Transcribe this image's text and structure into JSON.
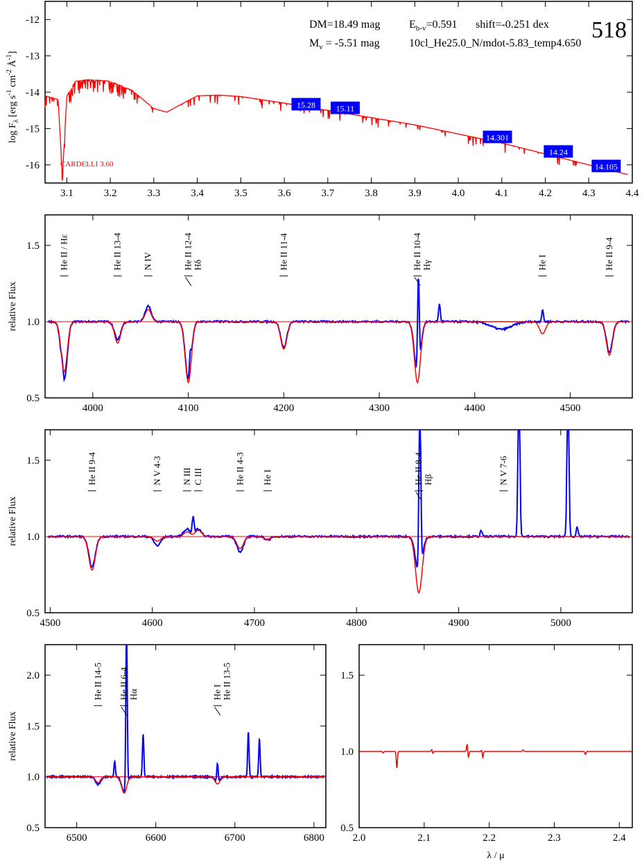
{
  "figure": {
    "object_id": "518",
    "dm": "DM=18.49 mag",
    "mv": "M",
    "mv_sub": "v",
    "mv_value": " =  -5.51 mag",
    "ebv_prefix": "E",
    "ebv_sub": "b-v",
    "ebv_value": "=0.591",
    "shift": "shift=-0.251 dex",
    "model": "10cl_He25.0_N/mdot-5.83_temp4.650",
    "reddening_law": "CARDELLI 3.60",
    "xlabel_bottom": "λ / μ"
  },
  "colors": {
    "observed": "#0000ff",
    "model": "#ff0000",
    "photometry_box": "#0000ff",
    "axis": "#000000"
  },
  "chart_data": [
    {
      "type": "line",
      "panel": "sed",
      "ylabel": "log F",
      "ylabel_sub": "λ",
      "ylabel_rest": " [erg s",
      "ylabel_units": [
        "-1",
        " cm",
        "-2",
        " Å",
        "-1",
        "]"
      ],
      "xlim": [
        3.05,
        4.4
      ],
      "ylim": [
        -16.5,
        -11.5
      ],
      "x_ticks": [
        3.1,
        3.2,
        3.3,
        3.4,
        3.5,
        3.6,
        3.7,
        3.8,
        3.9,
        4.0,
        4.1,
        4.2,
        4.3,
        4.4
      ],
      "y_ticks": [
        -16,
        -15,
        -14,
        -13,
        -12
      ],
      "model_sed": {
        "x": [
          3.05,
          3.08,
          3.09,
          3.1,
          3.12,
          3.15,
          3.2,
          3.25,
          3.3,
          3.33,
          3.36,
          3.4,
          3.45,
          3.5,
          3.6,
          3.7,
          3.8,
          3.9,
          4.0,
          4.1,
          4.2,
          4.3,
          4.4
        ],
        "y": [
          -14.1,
          -14.2,
          -16.3,
          -14.1,
          -13.7,
          -13.65,
          -13.7,
          -13.95,
          -14.45,
          -14.55,
          -14.35,
          -14.1,
          -14.08,
          -14.12,
          -14.3,
          -14.5,
          -14.7,
          -14.9,
          -15.15,
          -15.4,
          -15.7,
          -16.0,
          -16.3
        ]
      },
      "photometry": [
        {
          "x": 3.65,
          "y": -14.35,
          "label": "15.28"
        },
        {
          "x": 3.74,
          "y": -14.45,
          "label": "15.11"
        },
        {
          "x": 4.09,
          "y": -15.25,
          "label": "14.301"
        },
        {
          "x": 4.23,
          "y": -15.65,
          "label": "14.24"
        },
        {
          "x": 4.34,
          "y": -16.05,
          "label": "14.105"
        }
      ]
    },
    {
      "type": "line",
      "panel": "blue-1",
      "ylabel": "relative Flux",
      "xlim": [
        3950,
        4565
      ],
      "ylim": [
        0.5,
        1.7
      ],
      "x_ticks": [
        4000,
        4100,
        4200,
        4300,
        4400,
        4500
      ],
      "y_ticks": [
        0.5,
        1.0,
        1.5
      ],
      "y_tick_labels": [
        "0.5",
        "1.0",
        "1.5"
      ],
      "lines": [
        {
          "x": 3970,
          "label": "He II / Hε",
          "obs": -0.38,
          "mod": -0.33
        },
        {
          "x": 4026,
          "label": "He II 13-4",
          "obs": -0.12,
          "mod": -0.14
        },
        {
          "x": 4058,
          "label": "N IV",
          "obs": 0.1,
          "mod": 0.08
        },
        {
          "x": 4100,
          "label": "He II 12-4",
          "label2": "Hδ",
          "obs": -0.38,
          "mod": -0.4
        },
        {
          "x": 4200,
          "label": "He II 11-4",
          "obs": -0.17,
          "mod": -0.18
        },
        {
          "x": 4340,
          "label": "He II 10-4",
          "label2": "Hγ",
          "obs": -0.35,
          "mod": -0.4
        },
        {
          "x": 4471,
          "label": "He I",
          "obs": 0.0,
          "mod": -0.08
        },
        {
          "x": 4541,
          "label": "He II 9-4",
          "obs": -0.2,
          "mod": -0.22
        }
      ],
      "emission": [
        {
          "x": 4341,
          "h": 0.65
        },
        {
          "x": 4102,
          "h": 0.12
        },
        {
          "x": 4363,
          "h": 0.12
        },
        {
          "x": 4471,
          "h": 0.08
        },
        {
          "x": 3968,
          "h": 0.06
        }
      ],
      "broad": [
        {
          "x": 4428,
          "depth": -0.05,
          "width": 15
        }
      ]
    },
    {
      "type": "line",
      "panel": "blue-2",
      "ylabel": "relative Flux",
      "xlim": [
        4495,
        5070
      ],
      "ylim": [
        0.5,
        1.7
      ],
      "x_ticks": [
        4500,
        4600,
        4700,
        4800,
        4900,
        5000
      ],
      "y_ticks": [
        0.5,
        1.0,
        1.5
      ],
      "y_tick_labels": [
        "0.5",
        "1.0",
        "1.5"
      ],
      "lines": [
        {
          "x": 4541,
          "label": "He II 9-4",
          "obs": -0.2,
          "mod": -0.22
        },
        {
          "x": 4605,
          "label": "N V 4-3",
          "obs": -0.06,
          "mod": -0.03
        },
        {
          "x": 4634,
          "label": "N III",
          "obs": 0.05,
          "mod": 0.03
        },
        {
          "x": 4645,
          "label": "C III",
          "obs": 0.05,
          "mod": 0.04
        },
        {
          "x": 4686,
          "label": "He II 4-3",
          "obs": -0.1,
          "mod": -0.08
        },
        {
          "x": 4713,
          "label": "He I",
          "obs": -0.02,
          "mod": -0.02
        },
        {
          "x": 4861,
          "label": "He II 8-4",
          "label2": "Hβ",
          "obs": -0.25,
          "mod": -0.37
        },
        {
          "x": 4944,
          "label": "N V 7-6",
          "obs": 0.0,
          "mod": 0.0
        }
      ],
      "emission": [
        {
          "x": 4862,
          "h": 1.2
        },
        {
          "x": 4959,
          "h": 1.2
        },
        {
          "x": 5007,
          "h": 1.2
        },
        {
          "x": 4640,
          "h": 0.11
        },
        {
          "x": 5016,
          "h": 0.06
        },
        {
          "x": 4922,
          "h": 0.04
        }
      ]
    },
    {
      "type": "line",
      "panel": "h-alpha",
      "ylabel": "relative Flux",
      "xlim": [
        6460,
        6815
      ],
      "ylim": [
        0.5,
        2.3
      ],
      "x_ticks": [
        6500,
        6600,
        6700,
        6800
      ],
      "y_ticks": [
        0.5,
        1.0,
        1.5,
        2.0
      ],
      "y_tick_labels": [
        "0.5",
        "1.0",
        "1.5",
        "2.0"
      ],
      "lines": [
        {
          "x": 6527,
          "label": "He II 14-5",
          "obs": -0.07,
          "mod": -0.06
        },
        {
          "x": 6560,
          "label": "He II 6-4",
          "label2": "Hα",
          "obs": -0.15,
          "mod": -0.16
        },
        {
          "x": 6678,
          "label": "He I",
          "label2": "He II 13-5",
          "obs": -0.05,
          "mod": -0.07
        }
      ],
      "emission": [
        {
          "x": 6563,
          "h": 1.6
        },
        {
          "x": 6584,
          "h": 0.42
        },
        {
          "x": 6548,
          "h": 0.15
        },
        {
          "x": 6678,
          "h": 0.18
        },
        {
          "x": 6717,
          "h": 0.44
        },
        {
          "x": 6731,
          "h": 0.37
        }
      ]
    },
    {
      "type": "line",
      "panel": "infrared",
      "xlabel": "λ / μ",
      "xlim": [
        2.0,
        2.42
      ],
      "ylim": [
        0.5,
        1.7
      ],
      "x_ticks": [
        2.0,
        2.1,
        2.2,
        2.3,
        2.4
      ],
      "x_tick_labels": [
        "2.0",
        "2.1",
        "2.2",
        "2.3",
        "2.4"
      ],
      "y_ticks": [
        0.5,
        1.0,
        1.5
      ],
      "y_tick_labels": [
        "0.5",
        "1.0",
        "1.5"
      ],
      "features": [
        {
          "x": 2.058,
          "d": -0.11
        },
        {
          "x": 2.112,
          "d": 0.02
        },
        {
          "x": 2.113,
          "d": -0.02
        },
        {
          "x": 2.166,
          "d": 0.05
        },
        {
          "x": 2.168,
          "d": -0.04
        },
        {
          "x": 2.189,
          "d": 0.02
        },
        {
          "x": 2.19,
          "d": -0.05
        },
        {
          "x": 2.348,
          "d": -0.02
        },
        {
          "x": 2.037,
          "d": -0.01
        },
        {
          "x": 2.252,
          "d": 0.01
        }
      ]
    }
  ]
}
